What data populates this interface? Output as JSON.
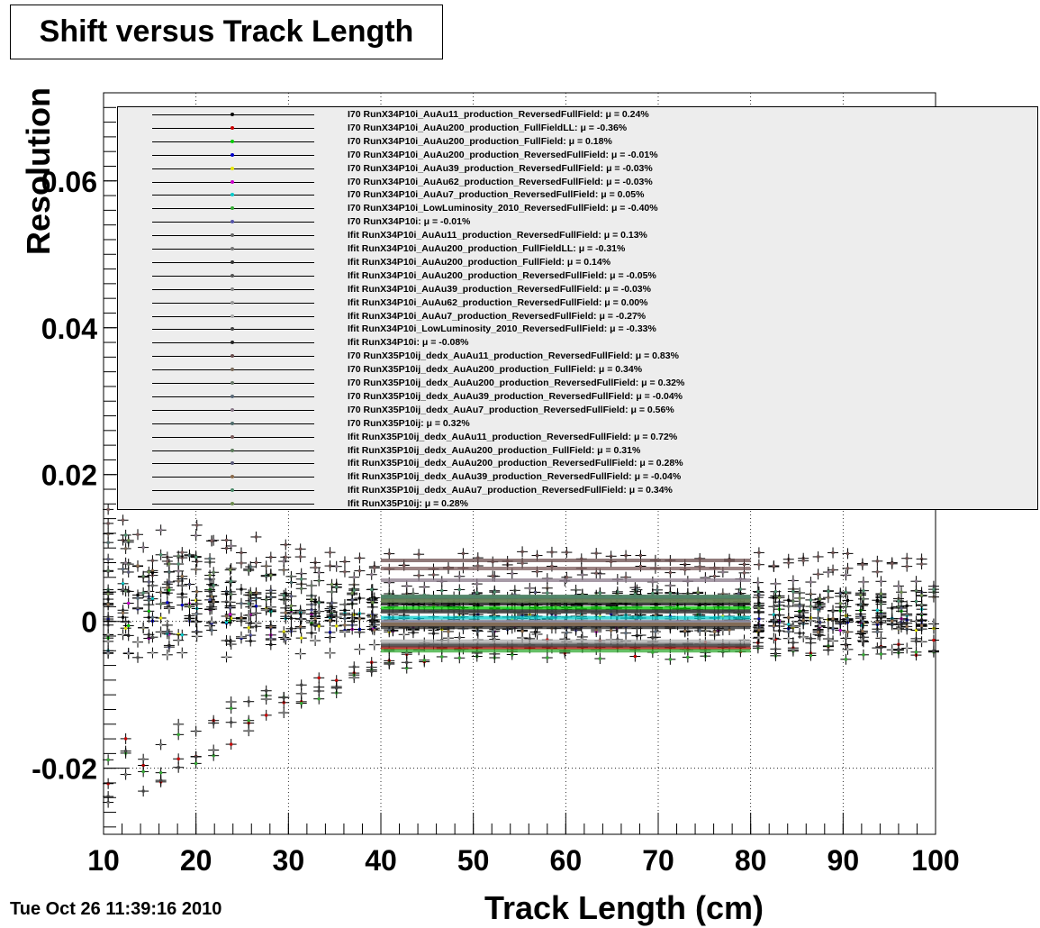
{
  "title": "Shift versus Track Length",
  "footer": {
    "datestamp": "Tue Oct 26 11:39:16 2010"
  },
  "chart_data": {
    "type": "scatter",
    "title": "Shift versus Track Length",
    "xlabel": "Track Length (cm)",
    "ylabel": "Resolution",
    "xlim": [
      10,
      100
    ],
    "ylim": [
      -0.029,
      0.072
    ],
    "xticks": [
      "10",
      "20",
      "30",
      "40",
      "50",
      "60",
      "70",
      "80",
      "90",
      "100"
    ],
    "yticks": [
      "-0.02",
      "0",
      "0.02",
      "0.04",
      "0.06"
    ],
    "grid": true,
    "legend_position": "top-right",
    "series": [
      {
        "name": "I70   RunX34P10i_AuAu11_production_ReversedFullField: μ = 0.24%",
        "color": "#000000",
        "mu": 0.0024
      },
      {
        "name": "I70   RunX34P10i_AuAu200_production_FullFieldLL: μ = -0.36%",
        "color": "#cc0000",
        "mu": -0.0036
      },
      {
        "name": "I70   RunX34P10i_AuAu200_production_FullField: μ = 0.18%",
        "color": "#00cc00",
        "mu": 0.0018
      },
      {
        "name": "I70   RunX34P10i_AuAu200_production_ReversedFullField: μ = -0.01%",
        "color": "#0000cc",
        "mu": -0.0001
      },
      {
        "name": "I70   RunX34P10i_AuAu39_production_ReversedFullField: μ = -0.03%",
        "color": "#e6e600",
        "mu": -0.0003
      },
      {
        "name": "I70   RunX34P10i_AuAu62_production_ReversedFullField: μ = -0.03%",
        "color": "#cc00cc",
        "mu": -0.0003
      },
      {
        "name": "I70   RunX34P10i_AuAu7_production_ReversedFullField: μ = 0.05%",
        "color": "#00cccc",
        "mu": 0.0005
      },
      {
        "name": "I70   RunX34P10i_LowLuminosity_2010_ReversedFullField: μ = -0.40%",
        "color": "#33aa33",
        "mu": -0.004
      },
      {
        "name": "I70   RunX34P10i: μ = -0.01%",
        "color": "#5555aa",
        "mu": -0.0001
      },
      {
        "name": "Ifit  RunX34P10i_AuAu11_production_ReversedFullField: μ = 0.13%",
        "color": "#666666",
        "mu": 0.0013
      },
      {
        "name": "Ifit  RunX34P10i_AuAu200_production_FullFieldLL: μ = -0.31%",
        "color": "#777777",
        "mu": -0.0031
      },
      {
        "name": "Ifit  RunX34P10i_AuAu200_production_FullField: μ = 0.14%",
        "color": "#333333",
        "mu": 0.0014
      },
      {
        "name": "Ifit  RunX34P10i_AuAu200_production_ReversedFullField: μ = -0.05%",
        "color": "#555555",
        "mu": -0.0005
      },
      {
        "name": "Ifit  RunX34P10i_AuAu39_production_ReversedFullField: μ = -0.03%",
        "color": "#888888",
        "mu": -0.0003
      },
      {
        "name": "Ifit  RunX34P10i_AuAu62_production_ReversedFullField: μ = 0.00%",
        "color": "#999999",
        "mu": 0.0
      },
      {
        "name": "Ifit  RunX34P10i_AuAu7_production_ReversedFullField: μ = -0.27%",
        "color": "#aaaaaa",
        "mu": -0.0027
      },
      {
        "name": "Ifit  RunX34P10i_LowLuminosity_2010_ReversedFullField: μ = -0.33%",
        "color": "#444444",
        "mu": -0.0033
      },
      {
        "name": "Ifit  RunX34P10i: μ = -0.08%",
        "color": "#222222",
        "mu": -0.0008
      },
      {
        "name": "I70   RunX35P10ij_dedx_AuAu11_production_ReversedFullField: μ = 0.83%",
        "color": "#6b4e4e",
        "mu": 0.0083
      },
      {
        "name": "I70   RunX35P10ij_dedx_AuAu200_production_FullField: μ = 0.34%",
        "color": "#7a6a5a",
        "mu": 0.0034
      },
      {
        "name": "I70   RunX35P10ij_dedx_AuAu200_production_ReversedFullField: μ = 0.32%",
        "color": "#6a7a6a",
        "mu": 0.0032
      },
      {
        "name": "I70   RunX35P10ij_dedx_AuAu39_production_ReversedFullField: μ = -0.04%",
        "color": "#5a6a7a",
        "mu": -0.0004
      },
      {
        "name": "I70   RunX35P10ij_dedx_AuAu7_production_ReversedFullField: μ = 0.56%",
        "color": "#8a7a8a",
        "mu": 0.0056
      },
      {
        "name": "I70   RunX35P10ij: μ = 0.32%",
        "color": "#4e6b6b",
        "mu": 0.0032
      },
      {
        "name": "Ifit  RunX35P10ij_dedx_AuAu11_production_ReversedFullField: μ = 0.72%",
        "color": "#7b5b5b",
        "mu": 0.0072
      },
      {
        "name": "Ifit  RunX35P10ij_dedx_AuAu200_production_FullField: μ = 0.31%",
        "color": "#5b7b5b",
        "mu": 0.0031
      },
      {
        "name": "Ifit  RunX35P10ij_dedx_AuAu200_production_ReversedFullField: μ = 0.28%",
        "color": "#5b5b7b",
        "mu": 0.0028
      },
      {
        "name": "Ifit  RunX35P10ij_dedx_AuAu39_production_ReversedFullField: μ = -0.04%",
        "color": "#8b6b4b",
        "mu": -0.0004
      },
      {
        "name": "Ifit  RunX35P10ij_dedx_AuAu7_production_ReversedFullField: μ = 0.34%",
        "color": "#4b8b6b",
        "mu": 0.0034
      },
      {
        "name": "Ifit  RunX35P10ij: μ = 0.28%",
        "color": "#6b8b4b",
        "mu": 0.0028
      }
    ]
  }
}
